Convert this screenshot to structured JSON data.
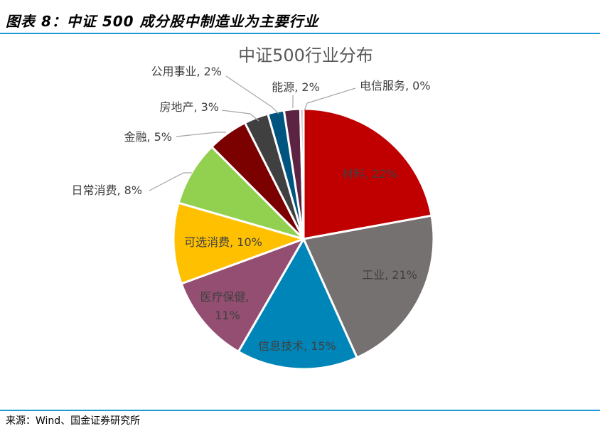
{
  "figure": {
    "title": "图表 8：中证 500 成分股中制造业为主要行业",
    "source": "来源：Wind、国金证券研究所",
    "rule_color": "#1f9ad6"
  },
  "chart_data": {
    "type": "pie",
    "title": "中证500行业分布",
    "labels": [
      "材料, 22%",
      "工业, 21%",
      "信息技术, 15%",
      "医疗保健,",
      "11%",
      "可选消费, 10%",
      "日常消费, 8%",
      "金融, 5%",
      "房地产, 3%",
      "公用事业, 2%",
      "能源, 2%",
      "电信服务, 0%"
    ],
    "slices": [
      {
        "name": "材料",
        "value": 22,
        "color": "#c00000"
      },
      {
        "name": "工业",
        "value": 21,
        "color": "#767171"
      },
      {
        "name": "信息技术",
        "value": 15,
        "color": "#0085b8"
      },
      {
        "name": "医疗保健",
        "value": 11,
        "color": "#934e71"
      },
      {
        "name": "可选消费",
        "value": 10,
        "color": "#ffc000"
      },
      {
        "name": "日常消费",
        "value": 8,
        "color": "#92d050"
      },
      {
        "name": "金融",
        "value": 5,
        "color": "#7b0000"
      },
      {
        "name": "房地产",
        "value": 3,
        "color": "#404040"
      },
      {
        "name": "公用事业",
        "value": 2,
        "color": "#005480"
      },
      {
        "name": "能源",
        "value": 2,
        "color": "#5c2342"
      },
      {
        "name": "电信服务",
        "value": 0.4,
        "color": "#c6a9b8"
      }
    ],
    "legend": "none"
  }
}
